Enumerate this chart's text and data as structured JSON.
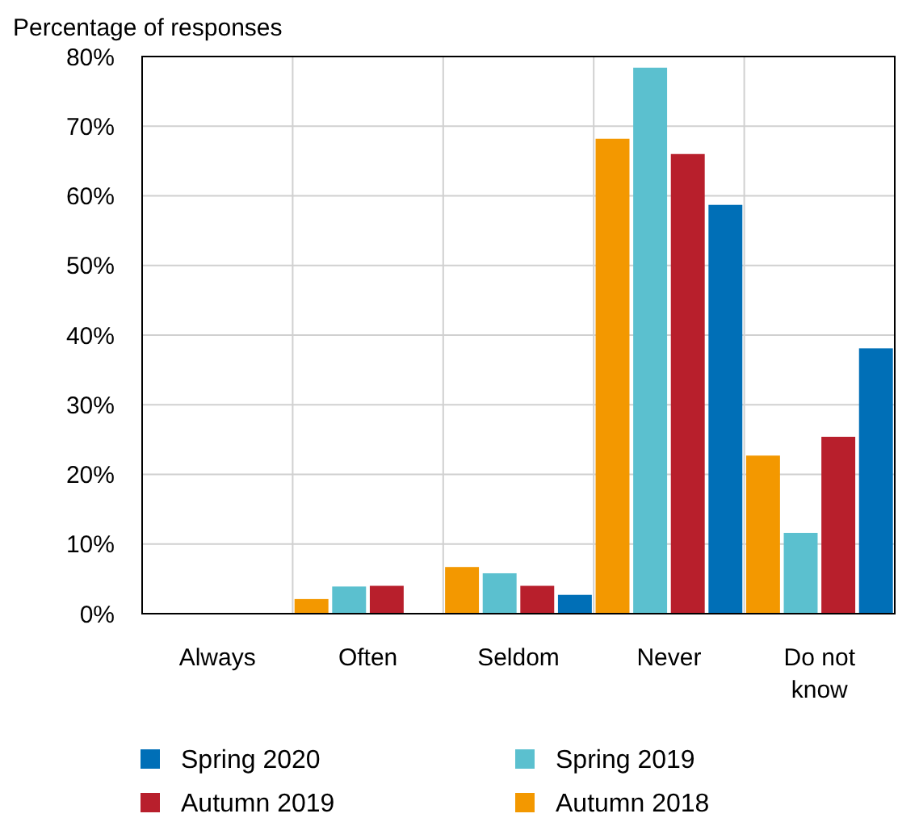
{
  "chart_data": {
    "type": "bar",
    "ylabel": "Percentage of responses",
    "categories": [
      "Always",
      "Often",
      "Seldom",
      "Never",
      "Do not know"
    ],
    "series": [
      {
        "name": "Autumn 2018",
        "color": "#f39800",
        "values": [
          0,
          2.1,
          6.7,
          68.2,
          22.7
        ]
      },
      {
        "name": "Spring 2019",
        "color": "#5bc0cf",
        "values": [
          0,
          3.9,
          5.8,
          78.4,
          11.6
        ]
      },
      {
        "name": "Autumn 2019",
        "color": "#b81f2c",
        "values": [
          0,
          4.0,
          4.0,
          66.0,
          25.4
        ]
      },
      {
        "name": "Spring 2020",
        "color": "#006fb7",
        "values": [
          0,
          0,
          2.7,
          58.7,
          38.1
        ]
      }
    ],
    "ylim": [
      0,
      80
    ],
    "yticks": [
      {
        "value": 0,
        "label": "0%"
      },
      {
        "value": 10,
        "label": "10%"
      },
      {
        "value": 20,
        "label": "20%"
      },
      {
        "value": 30,
        "label": "30%"
      },
      {
        "value": 40,
        "label": "40%"
      },
      {
        "value": 50,
        "label": "50%"
      },
      {
        "value": 60,
        "label": "60%"
      },
      {
        "value": 70,
        "label": "70%"
      },
      {
        "value": 80,
        "label": "80%"
      }
    ],
    "grid": true,
    "legend": "bottom"
  }
}
